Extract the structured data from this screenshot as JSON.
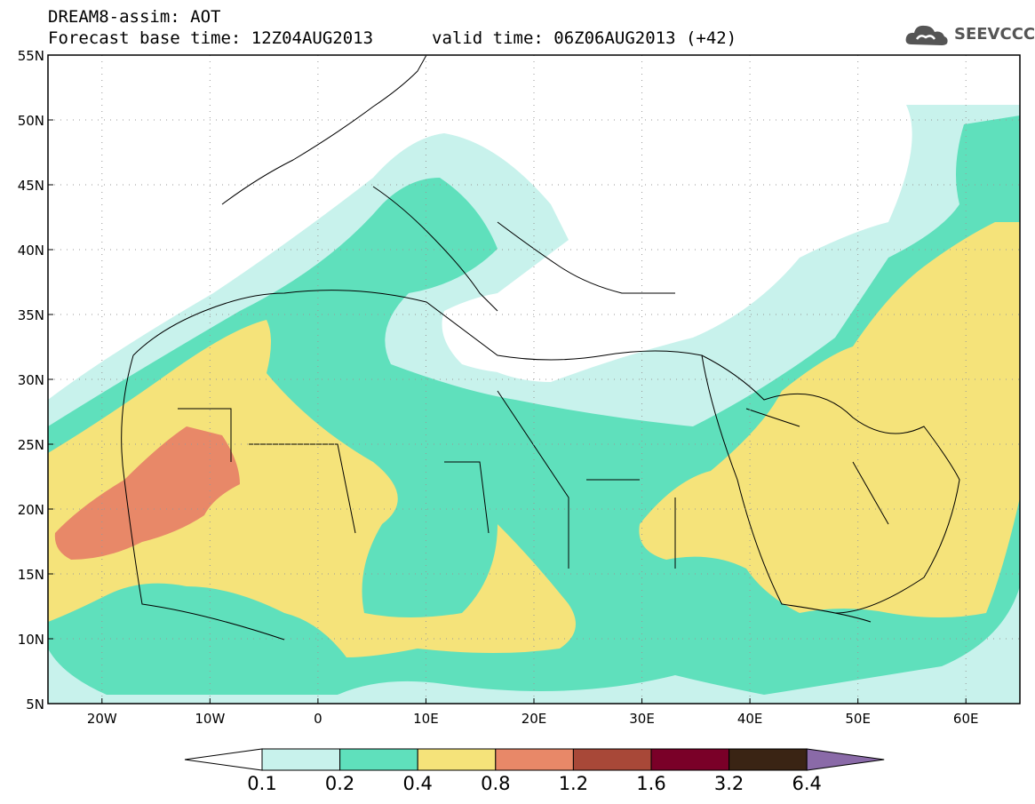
{
  "header": {
    "title": "DREAM8-assim: AOT",
    "base_time": "Forecast base time: 12Z04AUG2013",
    "valid_time": "valid time: 06Z06AUG2013 (+42)"
  },
  "logo": {
    "text": "SEEVCCC",
    "icon": "cloud-icon"
  },
  "map": {
    "lat_labels": [
      "55N",
      "50N",
      "45N",
      "40N",
      "35N",
      "30N",
      "25N",
      "20N",
      "15N",
      "10N",
      "5N"
    ],
    "lon_labels": [
      "20W",
      "10W",
      "0",
      "10E",
      "20E",
      "30E",
      "40E",
      "50E",
      "60E"
    ],
    "lat_range": [
      5,
      55
    ],
    "lon_range": [
      -25,
      65
    ],
    "projection": "cylindrical",
    "gridlines": "dotted"
  },
  "colorbar": {
    "labels": [
      "0.1",
      "0.2",
      "0.4",
      "0.8",
      "1.2",
      "1.6",
      "3.2",
      "6.4"
    ],
    "colors": [
      "#c8f2ec",
      "#5fe0bc",
      "#f5e37a",
      "#e88868",
      "#a84838",
      "#7a0028",
      "#3a2414",
      "#8a6aa8"
    ],
    "under_color": "#ffffff"
  },
  "fields": {
    "colors": {
      "c01": "#c8f2ec",
      "c02": "#5fe0bc",
      "c04": "#f5e37a",
      "c08": "#e88868"
    }
  }
}
